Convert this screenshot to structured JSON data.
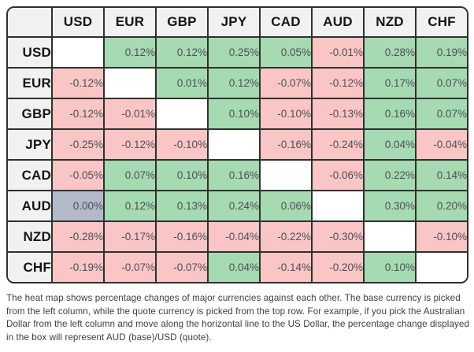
{
  "heatmap": {
    "corner_label": "",
    "columns": [
      "USD",
      "EUR",
      "GBP",
      "JPY",
      "CAD",
      "AUD",
      "NZD",
      "CHF"
    ],
    "rows": [
      {
        "base": "USD",
        "cells": [
          "",
          "0.12%",
          "0.12%",
          "0.25%",
          "0.05%",
          "-0.01%",
          "0.28%",
          "0.19%"
        ]
      },
      {
        "base": "EUR",
        "cells": [
          "-0.12%",
          "",
          "0.01%",
          "0.12%",
          "-0.07%",
          "-0.12%",
          "0.17%",
          "0.07%"
        ]
      },
      {
        "base": "GBP",
        "cells": [
          "-0.12%",
          "-0.01%",
          "",
          "0.10%",
          "-0.10%",
          "-0.13%",
          "0.16%",
          "0.07%"
        ]
      },
      {
        "base": "JPY",
        "cells": [
          "-0.25%",
          "-0.12%",
          "-0.10%",
          "",
          "-0.16%",
          "-0.24%",
          "0.04%",
          "-0.04%"
        ]
      },
      {
        "base": "CAD",
        "cells": [
          "-0.05%",
          "0.07%",
          "0.10%",
          "0.16%",
          "",
          "-0.06%",
          "0.22%",
          "0.14%"
        ]
      },
      {
        "base": "AUD",
        "cells": [
          "0.00%",
          "0.12%",
          "0.13%",
          "0.24%",
          "0.06%",
          "",
          "0.30%",
          "0.20%"
        ]
      },
      {
        "base": "NZD",
        "cells": [
          "-0.28%",
          "-0.17%",
          "-0.16%",
          "-0.04%",
          "-0.22%",
          "-0.30%",
          "",
          "-0.10%"
        ]
      },
      {
        "base": "CHF",
        "cells": [
          "-0.19%",
          "-0.07%",
          "-0.07%",
          "0.04%",
          "-0.14%",
          "-0.20%",
          "0.10%",
          ""
        ]
      }
    ],
    "colors": {
      "positive": "#a6dab2",
      "negative": "#f9c6c5",
      "zero": "#b2bac9",
      "header_bg": "#f1f1f2",
      "border": "#303030",
      "value_text": "#4e4e55",
      "header_text": "#151515"
    }
  },
  "caption": "The heat map shows percentage changes of major currencies against each other. The base currency is picked from the left column, while the quote currency is picked from the top row. For example, if you pick the Australian Dollar from the left column and move along the horizontal line to the US Dollar, the percentage change displayed in the box will represent AUD (base)/USD (quote).",
  "chart_data": {
    "type": "heatmap",
    "title": "Currency heat map of percentage changes",
    "columns_quote": [
      "USD",
      "EUR",
      "GBP",
      "JPY",
      "CAD",
      "AUD",
      "NZD",
      "CHF"
    ],
    "rows_base": [
      "USD",
      "EUR",
      "GBP",
      "JPY",
      "CAD",
      "AUD",
      "NZD",
      "CHF"
    ],
    "values_pct": [
      [
        null,
        0.12,
        0.12,
        0.25,
        0.05,
        -0.01,
        0.28,
        0.19
      ],
      [
        -0.12,
        null,
        0.01,
        0.12,
        -0.07,
        -0.12,
        0.17,
        0.07
      ],
      [
        -0.12,
        -0.01,
        null,
        0.1,
        -0.1,
        -0.13,
        0.16,
        0.07
      ],
      [
        -0.25,
        -0.12,
        -0.1,
        null,
        -0.16,
        -0.24,
        0.04,
        -0.04
      ],
      [
        -0.05,
        0.07,
        0.1,
        0.16,
        null,
        -0.06,
        0.22,
        0.14
      ],
      [
        0.0,
        0.12,
        0.13,
        0.24,
        0.06,
        null,
        0.3,
        0.2
      ],
      [
        -0.28,
        -0.17,
        -0.16,
        -0.04,
        -0.22,
        -0.3,
        null,
        -0.1
      ],
      [
        -0.19,
        -0.07,
        -0.07,
        0.04,
        -0.14,
        -0.2,
        0.1,
        null
      ]
    ],
    "color_coding": "green = positive change, red = negative change, gray = zero change, white = diagonal (same currency)",
    "legend_position": "none",
    "grid": true
  }
}
